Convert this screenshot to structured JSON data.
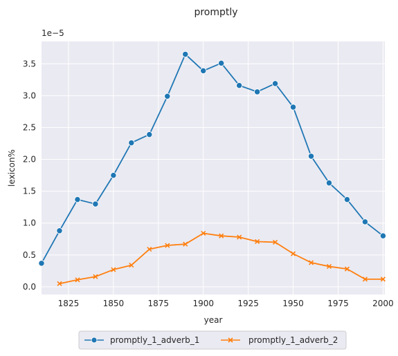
{
  "chart_data": {
    "type": "line",
    "title": "promptly",
    "xlabel": "year",
    "ylabel": "lexicon%",
    "y_scale_label": "1e−5",
    "xlim": [
      1810,
      2001
    ],
    "ylim": [
      -0.12,
      3.85
    ],
    "x_ticks": [
      1825,
      1850,
      1875,
      1900,
      1925,
      1950,
      1975,
      2000
    ],
    "y_ticks": [
      0.0,
      0.5,
      1.0,
      1.5,
      2.0,
      2.5,
      3.0,
      3.5
    ],
    "y_tick_labels": [
      "0.0",
      "0.5",
      "1.0",
      "1.5",
      "2.0",
      "2.5",
      "3.0",
      "3.5"
    ],
    "grid": true,
    "legend_position": "bottom-center",
    "colors": {
      "background": "#eaeaf2",
      "grid": "#ffffff"
    },
    "series": [
      {
        "name": "promptly_1_adverb_1",
        "color": "#1f77b4",
        "marker": "circle",
        "x": [
          1810,
          1820,
          1830,
          1840,
          1850,
          1860,
          1870,
          1880,
          1890,
          1900,
          1910,
          1920,
          1930,
          1940,
          1950,
          1960,
          1970,
          1980,
          1990,
          2000
        ],
        "values": [
          0.37,
          0.88,
          1.37,
          1.3,
          1.75,
          2.26,
          2.39,
          2.99,
          3.65,
          3.39,
          3.51,
          3.16,
          3.06,
          3.19,
          2.82,
          2.05,
          1.63,
          1.37,
          1.02,
          0.8
        ]
      },
      {
        "name": "promptly_1_adverb_2",
        "color": "#ff7f0e",
        "marker": "x",
        "x": [
          1820,
          1830,
          1840,
          1850,
          1860,
          1870,
          1880,
          1890,
          1900,
          1910,
          1920,
          1930,
          1940,
          1950,
          1960,
          1970,
          1980,
          1990,
          2000
        ],
        "values": [
          0.05,
          0.11,
          0.16,
          0.27,
          0.34,
          0.59,
          0.65,
          0.67,
          0.84,
          0.8,
          0.78,
          0.71,
          0.7,
          0.52,
          0.38,
          0.32,
          0.28,
          0.12,
          0.12
        ]
      }
    ]
  }
}
